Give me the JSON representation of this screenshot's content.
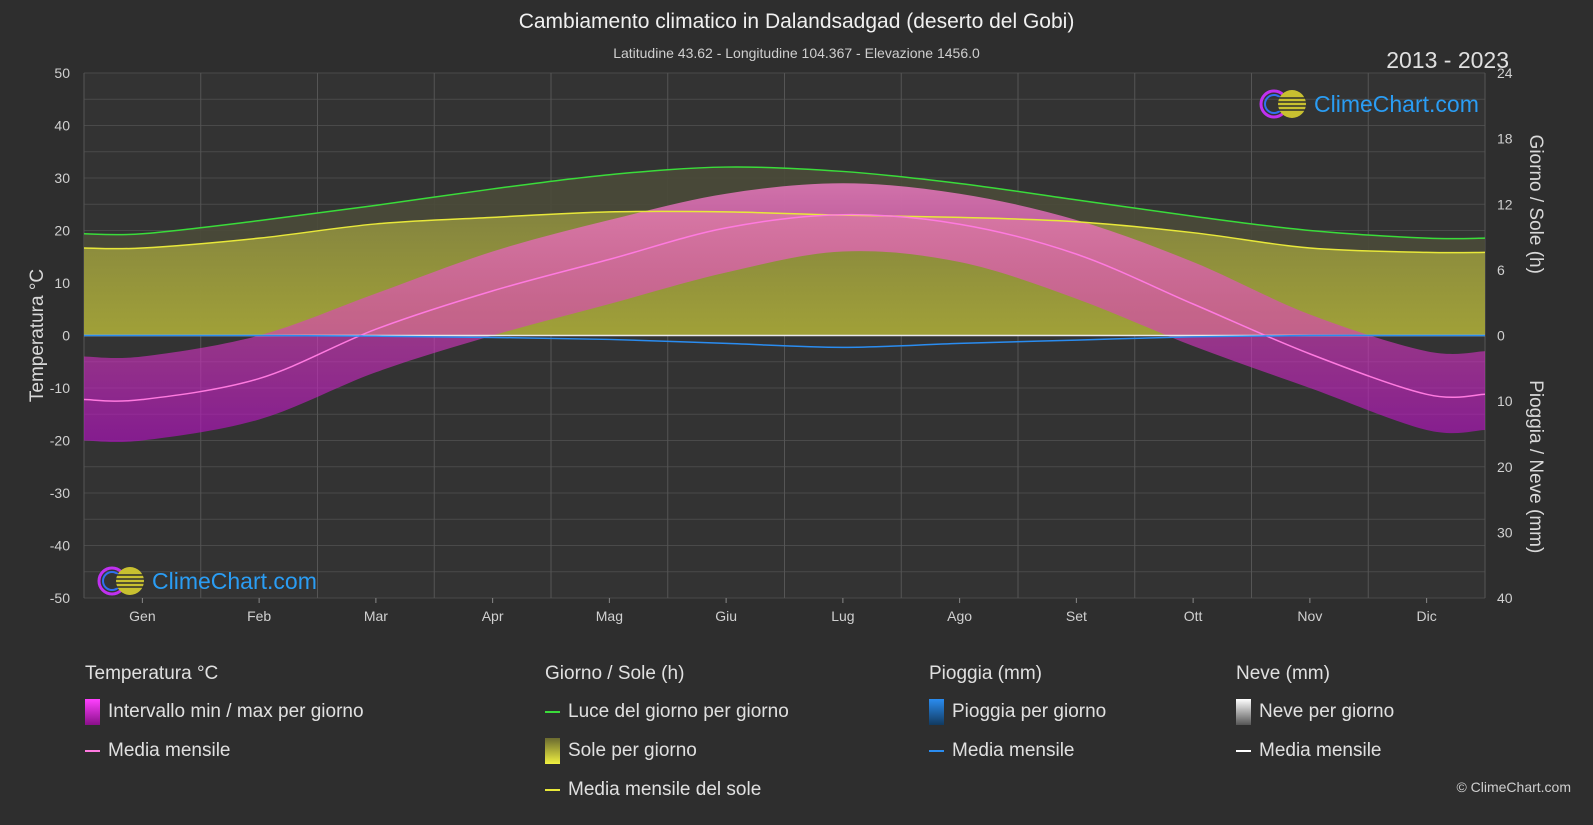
{
  "header": {
    "title": "Cambiamento climatico in Dalandsadgad (deserto del Gobi)",
    "subtitle": "Latitudine 43.62 - Longitudine 104.367 - Elevazione 1456.0",
    "years": "2013 - 2023"
  },
  "logo": {
    "text": "ClimeChart.com"
  },
  "copyright": "© ClimeChart.com",
  "colors": {
    "background": "#2e2e2e",
    "daylight": "#3adc3a",
    "sun_mean": "#e8e83a",
    "temp_mean": "#ff7ae0",
    "temp_range": "#e020e0",
    "rain": "#2a8cf0",
    "snow": "#ffffff",
    "logo_text": "#2a9df4"
  },
  "chart_data": {
    "type": "area",
    "months": [
      "Gen",
      "Feb",
      "Mar",
      "Apr",
      "Mag",
      "Giu",
      "Lug",
      "Ago",
      "Set",
      "Ott",
      "Nov",
      "Dic"
    ],
    "left_axis": {
      "label": "Temperatura °C",
      "min": -50,
      "max": 50,
      "ticks": [
        50,
        40,
        30,
        20,
        10,
        0,
        -10,
        -20,
        -30,
        -40,
        -50
      ]
    },
    "right_axis_top": {
      "label": "Giorno / Sole (h)",
      "min": 0,
      "max": 24,
      "ticks": [
        24,
        18,
        12,
        6,
        0
      ]
    },
    "right_axis_bottom": {
      "label": "Pioggia / Neve (mm)",
      "min": 0,
      "max": 40,
      "ticks": [
        0,
        10,
        20,
        30,
        40
      ]
    },
    "series": [
      {
        "name": "Luce del giorno per giorno",
        "unit": "h",
        "values": [
          9.3,
          10.5,
          11.9,
          13.4,
          14.7,
          15.4,
          15.0,
          13.9,
          12.4,
          10.9,
          9.6,
          8.9
        ]
      },
      {
        "name": "Media mensile del sole",
        "unit": "h",
        "values": [
          8.0,
          8.9,
          10.2,
          10.8,
          11.3,
          11.3,
          11.0,
          10.8,
          10.4,
          9.4,
          8.0,
          7.6
        ]
      },
      {
        "name": "Media mensile",
        "unit": "°C",
        "values": [
          -12.2,
          -8.2,
          1.2,
          8.5,
          14.5,
          20.5,
          23.0,
          21.2,
          15.5,
          6.0,
          -3.5,
          -11.2
        ]
      },
      {
        "name": "Pioggia media mensile",
        "unit": "mm",
        "values": [
          0.0,
          0.0,
          0.1,
          0.3,
          0.6,
          1.2,
          1.8,
          1.2,
          0.7,
          0.2,
          0.0,
          0.0
        ]
      },
      {
        "name": "Temperatura max media",
        "unit": "°C",
        "values": [
          -4,
          0,
          8,
          16,
          22,
          27,
          29,
          27,
          22,
          14,
          4,
          -3
        ]
      },
      {
        "name": "Temperatura min media",
        "unit": "°C",
        "values": [
          -20,
          -16,
          -7,
          0,
          6,
          12,
          16,
          14,
          7,
          -2,
          -10,
          -18
        ]
      }
    ]
  },
  "legend": {
    "groups": [
      {
        "title": "Temperatura °C",
        "items": [
          {
            "label": "Intervallo min / max per giorno",
            "type": "box",
            "color": "#e020e0"
          },
          {
            "label": "Media mensile",
            "type": "line",
            "color": "#ff7ae0"
          }
        ]
      },
      {
        "title": "Giorno / Sole (h)",
        "items": [
          {
            "label": "Luce del giorno per giorno",
            "type": "line",
            "color": "#3adc3a"
          },
          {
            "label": "Sole per giorno",
            "type": "box",
            "color": "#d8d83a"
          },
          {
            "label": "Media mensile del sole",
            "type": "line",
            "color": "#e8e83a"
          }
        ]
      },
      {
        "title": "Pioggia (mm)",
        "items": [
          {
            "label": "Pioggia per giorno",
            "type": "box",
            "color": "#2a8cf0"
          },
          {
            "label": "Media mensile",
            "type": "line",
            "color": "#2a8cf0"
          }
        ]
      },
      {
        "title": "Neve (mm)",
        "items": [
          {
            "label": "Neve per giorno",
            "type": "box",
            "color": "#e8e8e8"
          },
          {
            "label": "Media mensile",
            "type": "line",
            "color": "#ffffff"
          }
        ]
      }
    ]
  }
}
